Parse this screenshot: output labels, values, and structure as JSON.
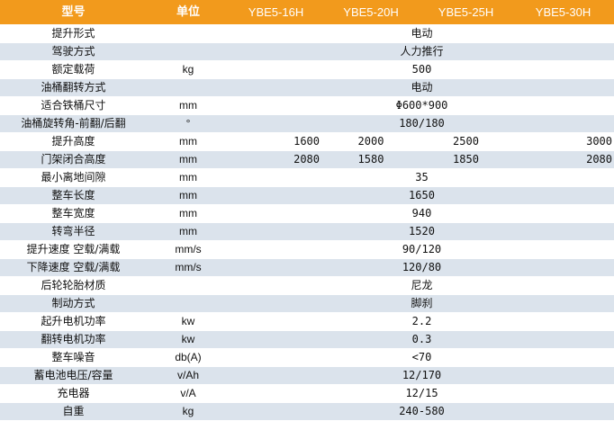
{
  "header": {
    "label": "型号",
    "unit": "单位",
    "models": [
      "YBE5-16H",
      "YBE5-20H",
      "YBE5-25H",
      "YBE5-30H"
    ]
  },
  "rows": [
    {
      "label": "提升形式",
      "unit": "",
      "value": "电动"
    },
    {
      "label": "驾驶方式",
      "unit": "",
      "value": "人力推行"
    },
    {
      "label": "额定载荷",
      "unit": "kg",
      "value": "500"
    },
    {
      "label": "油桶翻转方式",
      "unit": "",
      "value": "电动"
    },
    {
      "label": "适合铁桶尺寸",
      "unit": "mm",
      "value": "Φ600*900"
    },
    {
      "label": "油桶旋转角-前翻/后翻",
      "unit": "°",
      "value": "180/180"
    },
    {
      "label": "提升高度",
      "unit": "mm",
      "values": [
        "1600",
        "2000",
        "2500",
        "3000"
      ]
    },
    {
      "label": "门架闭合高度",
      "unit": "mm",
      "values": [
        "2080",
        "1580",
        "1850",
        "2080"
      ]
    },
    {
      "label": "最小离地间隙",
      "unit": "mm",
      "value": "35"
    },
    {
      "label": "整车长度",
      "unit": "mm",
      "value": "1650"
    },
    {
      "label": "整车宽度",
      "unit": "mm",
      "value": "940"
    },
    {
      "label": "转弯半径",
      "unit": "mm",
      "value": "1520"
    },
    {
      "label": "提升速度 空载/满载",
      "unit": "mm/s",
      "value": "90/120"
    },
    {
      "label": "下降速度 空载/满载",
      "unit": "mm/s",
      "value": "120/80"
    },
    {
      "label": "后轮轮胎材质",
      "unit": "",
      "value": "尼龙"
    },
    {
      "label": "制动方式",
      "unit": "",
      "value": "脚刹"
    },
    {
      "label": "起升电机功率",
      "unit": "kw",
      "value": "2.2"
    },
    {
      "label": "翻转电机功率",
      "unit": "kw",
      "value": "0.3"
    },
    {
      "label": "整车噪音",
      "unit": "db(A)",
      "value": "<70"
    },
    {
      "label": "蓄电池电压/容量",
      "unit": "v/Ah",
      "value": "12/170"
    },
    {
      "label": "充电器",
      "unit": "v/A",
      "value": "12/15"
    },
    {
      "label": "自重",
      "unit": "kg",
      "value": "240-580"
    }
  ],
  "colors": {
    "header_bg": "#f29a1c",
    "header_text": "#ffffff",
    "stripe_bg": "#dbe3ec",
    "row_bg": "#ffffff"
  }
}
